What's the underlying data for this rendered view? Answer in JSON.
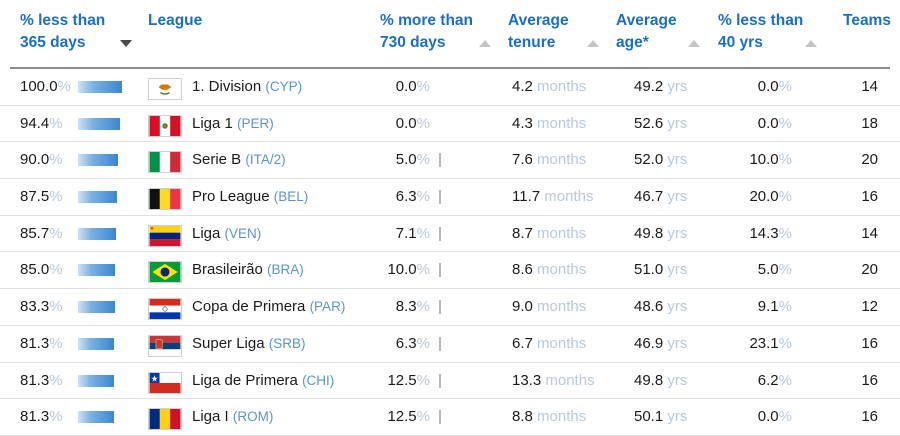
{
  "header": {
    "col_pct_less_365": {
      "line1": "% less than",
      "line2": "365 days"
    },
    "col_league": {
      "line1": "",
      "line2": "League"
    },
    "col_pct_more_730": {
      "line1": "% more than",
      "line2": "730 days"
    },
    "col_tenure": {
      "line1": "Average",
      "line2": "tenure"
    },
    "col_age": {
      "line1": "Average",
      "line2": "age*"
    },
    "col_pct_less_40": {
      "line1": "% less than",
      "line2": "40 yrs"
    },
    "col_teams": {
      "line1": "",
      "line2": "Teams"
    }
  },
  "units": {
    "pct": "%",
    "months": "months",
    "yrs": "yrs"
  },
  "colors": {
    "header_link": "#1a6fc4",
    "league_code": "#5a94cf",
    "unit_text": "#b7c9dc",
    "bar": "#3c86d0"
  },
  "rows": [
    {
      "pct_less_365": "100.0",
      "pct_fill": 1.0,
      "flag": "cyprus-flag",
      "league": "1. Division",
      "code": "(CYP)",
      "pct_more_730": "0.0",
      "more_bar": false,
      "tenure": "4.2",
      "age": "49.2",
      "pct_less_40": "0.0",
      "teams": "14"
    },
    {
      "pct_less_365": "94.4",
      "pct_fill": 0.944,
      "flag": "peru-flag",
      "league": "Liga 1",
      "code": "(PER)",
      "pct_more_730": "0.0",
      "more_bar": false,
      "tenure": "4.3",
      "age": "52.6",
      "pct_less_40": "0.0",
      "teams": "18"
    },
    {
      "pct_less_365": "90.0",
      "pct_fill": 0.9,
      "flag": "italy-flag",
      "league": "Serie B",
      "code": "(ITA/2)",
      "pct_more_730": "5.0",
      "more_bar": true,
      "tenure": "7.6",
      "age": "52.0",
      "pct_less_40": "10.0",
      "teams": "20"
    },
    {
      "pct_less_365": "87.5",
      "pct_fill": 0.875,
      "flag": "belgium-flag",
      "league": "Pro League",
      "code": "(BEL)",
      "pct_more_730": "6.3",
      "more_bar": true,
      "tenure": "11.7",
      "age": "46.7",
      "pct_less_40": "20.0",
      "teams": "16"
    },
    {
      "pct_less_365": "85.7",
      "pct_fill": 0.857,
      "flag": "venezuela-flag",
      "league": "Liga",
      "code": "(VEN)",
      "pct_more_730": "7.1",
      "more_bar": true,
      "tenure": "8.7",
      "age": "49.8",
      "pct_less_40": "14.3",
      "teams": "14"
    },
    {
      "pct_less_365": "85.0",
      "pct_fill": 0.85,
      "flag": "brazil-flag",
      "league": "Brasileirão",
      "code": "(BRA)",
      "pct_more_730": "10.0",
      "more_bar": true,
      "tenure": "8.6",
      "age": "51.0",
      "pct_less_40": "5.0",
      "teams": "20"
    },
    {
      "pct_less_365": "83.3",
      "pct_fill": 0.833,
      "flag": "paraguay-flag",
      "league": "Copa de Primera",
      "code": "(PAR)",
      "pct_more_730": "8.3",
      "more_bar": true,
      "tenure": "9.0",
      "age": "48.6",
      "pct_less_40": "9.1",
      "teams": "12"
    },
    {
      "pct_less_365": "81.3",
      "pct_fill": 0.813,
      "flag": "serbia-flag",
      "league": "Super Liga",
      "code": "(SRB)",
      "pct_more_730": "6.3",
      "more_bar": true,
      "tenure": "6.7",
      "age": "46.9",
      "pct_less_40": "23.1",
      "teams": "16"
    },
    {
      "pct_less_365": "81.3",
      "pct_fill": 0.813,
      "flag": "chile-flag",
      "league": "Liga de Primera",
      "code": "(CHI)",
      "pct_more_730": "12.5",
      "more_bar": true,
      "tenure": "13.3",
      "age": "49.8",
      "pct_less_40": "6.2",
      "teams": "16"
    },
    {
      "pct_less_365": "81.3",
      "pct_fill": 0.813,
      "flag": "romania-flag",
      "league": "Liga I",
      "code": "(ROM)",
      "pct_more_730": "12.5",
      "more_bar": true,
      "tenure": "8.8",
      "age": "50.1",
      "pct_less_40": "0.0",
      "teams": "16"
    }
  ]
}
